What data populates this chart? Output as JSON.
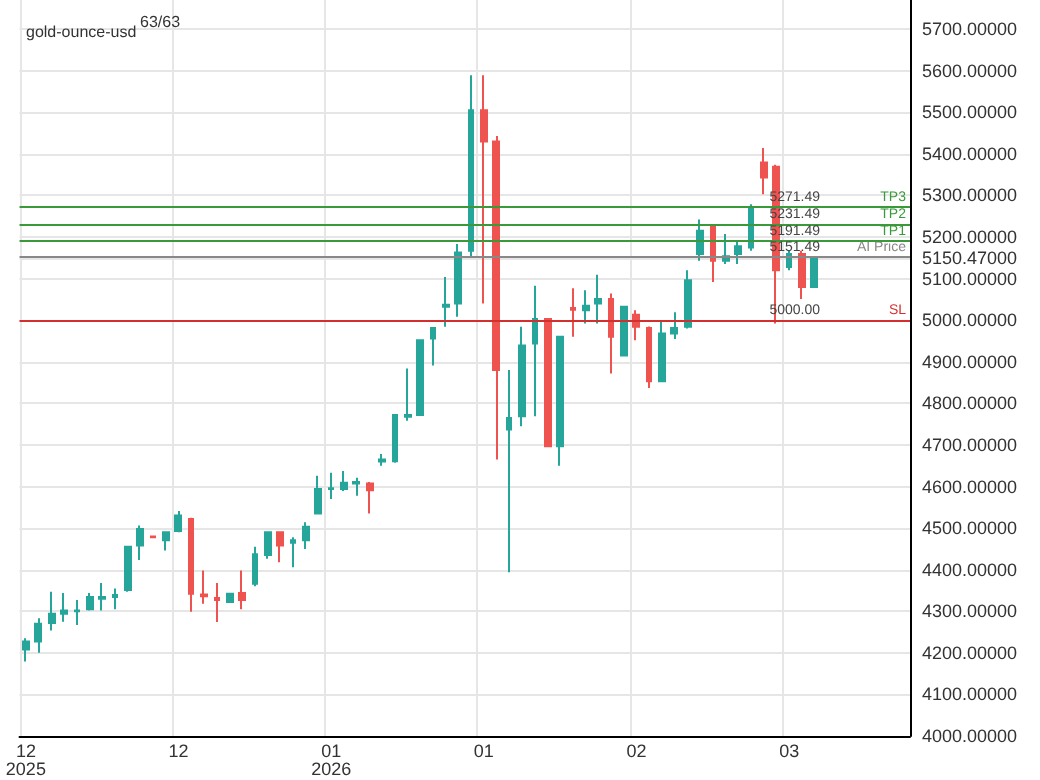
{
  "chart_data": {
    "type": "candlestick",
    "title": "gold-ounce-usd",
    "annotations": [
      "63/63",
      {
        "text": "TP3",
        "y": 5271.49
      },
      {
        "text": "TP2",
        "y": 5231.49
      },
      {
        "text": "TP1",
        "y": 5191.49
      },
      {
        "text": "AI Price",
        "y": 5151.49
      },
      {
        "text": "SL",
        "y": 5000
      }
    ],
    "categories": [
      "12\n2025",
      null,
      null,
      null,
      null,
      null,
      null,
      null,
      null,
      null,
      null,
      null,
      "12",
      null,
      null,
      null,
      null,
      null,
      null,
      null,
      null,
      null,
      null,
      null,
      "01\n2026",
      null,
      null,
      null,
      null,
      null,
      null,
      null,
      null,
      null,
      null,
      null,
      "01",
      null,
      null,
      null,
      null,
      null,
      null,
      null,
      null,
      null,
      null,
      null,
      "02",
      null,
      null,
      null,
      null,
      null,
      null,
      null,
      null,
      null,
      null,
      null,
      "03",
      null,
      null,
      null,
      null,
      null,
      null,
      null,
      null,
      null
    ],
    "ohlc": [
      [
        4208,
        4235,
        4179,
        4227
      ],
      [
        4227,
        4283,
        4200,
        4270
      ],
      [
        4272,
        4347,
        4254,
        4294
      ],
      [
        4294,
        4344,
        4275,
        4302
      ],
      [
        4300,
        4327,
        4267,
        4302
      ],
      [
        4305,
        4344,
        4302,
        4334
      ],
      [
        4330,
        4368,
        4302,
        4334
      ],
      [
        4334,
        4355,
        4305,
        4339
      ],
      [
        4351,
        4455,
        4347,
        4455
      ],
      [
        4458,
        4506,
        4423,
        4498
      ],
      [
        4480,
        4482,
        4476,
        4478
      ],
      [
        4471,
        4492,
        4446,
        4490
      ],
      [
        4493,
        4541,
        4490,
        4530
      ],
      [
        4522,
        4525,
        4299,
        4342
      ],
      [
        4340,
        4398,
        4318,
        4336
      ],
      [
        4332,
        4368,
        4274,
        4327
      ],
      [
        4322,
        4344,
        4320,
        4342
      ],
      [
        4344,
        4398,
        4305,
        4327
      ],
      [
        4366,
        4455,
        4360,
        4437
      ],
      [
        4435,
        4492,
        4426,
        4490
      ],
      [
        4490,
        4492,
        4418,
        4458
      ],
      [
        4465,
        4478,
        4406,
        4471
      ],
      [
        4471,
        4514,
        4450,
        4503
      ],
      [
        4535,
        4626,
        4535,
        4594
      ],
      [
        4594,
        4633,
        4570,
        4596
      ],
      [
        4594,
        4637,
        4589,
        4609
      ],
      [
        4607,
        4621,
        4578,
        4611
      ],
      [
        4607,
        4611,
        4535,
        4591
      ],
      [
        4660,
        4678,
        4650,
        4665
      ],
      [
        4661,
        4772,
        4657,
        4772
      ],
      [
        4768,
        4884,
        4758,
        4772
      ],
      [
        4772,
        4952,
        4770,
        4952
      ],
      [
        4956,
        4981,
        4891,
        4981
      ],
      [
        5032,
        5104,
        4984,
        5037
      ],
      [
        5040,
        5183,
        5008,
        5163
      ],
      [
        5167,
        5589,
        5152,
        5505
      ],
      [
        5505,
        5589,
        5040,
        5430
      ],
      [
        5430,
        5443,
        4665,
        4880
      ],
      [
        4737,
        4880,
        4394,
        4765
      ],
      [
        4769,
        4984,
        4745,
        4939
      ],
      [
        4944,
        5083,
        4769,
        5003
      ],
      [
        5003,
        5005,
        4697,
        4697
      ],
      [
        4697,
        4962,
        4650,
        4960
      ],
      [
        5029,
        5077,
        4960,
        5025
      ],
      [
        5024,
        5072,
        4992,
        5035
      ],
      [
        5040,
        5109,
        4992,
        5051
      ],
      [
        5051,
        5064,
        4872,
        4960
      ],
      [
        4915,
        5035,
        4913,
        5032
      ],
      [
        5013,
        5024,
        4952,
        4984
      ],
      [
        4981,
        4985,
        4837,
        4853
      ],
      [
        4853,
        4997,
        4853,
        4968
      ],
      [
        4968,
        5019,
        4955,
        4981
      ],
      [
        4984,
        5120,
        4980,
        5096
      ],
      [
        5159,
        5242,
        5143,
        5215
      ],
      [
        5226,
        5231,
        5092,
        5143
      ],
      [
        5143,
        5207,
        5135,
        5154
      ],
      [
        5159,
        5191,
        5135,
        5178
      ],
      [
        5175,
        5279,
        5167,
        5271
      ],
      [
        5379,
        5414,
        5303,
        5343
      ],
      [
        5369,
        5374,
        4992,
        5120
      ],
      [
        5128,
        5167,
        5120,
        5159
      ],
      [
        5159,
        5167,
        5051,
        5080
      ],
      [
        5080,
        5152,
        5078,
        5150
      ],
      null,
      null,
      null,
      null,
      null,
      null,
      null
    ],
    "colors": [
      "#26a69a",
      "#26a69a",
      "#26a69a",
      "#26a69a",
      "#26a69a",
      "#26a69a",
      "#26a69a",
      "#26a69a",
      "#26a69a",
      "#26a69a",
      "#ef5350",
      "#26a69a",
      "#26a69a",
      "#ef5350",
      "#ef5350",
      "#ef5350",
      "#26a69a",
      "#ef5350",
      "#26a69a",
      "#26a69a",
      "#ef5350",
      "#26a69a",
      "#26a69a",
      "#26a69a",
      "#26a69a",
      "#26a69a",
      "#26a69a",
      "#ef5350",
      "#26a69a",
      "#26a69a",
      "#26a69a",
      "#26a69a",
      "#26a69a",
      "#26a69a",
      "#26a69a",
      "#26a69a",
      "#ef5350",
      "#ef5350",
      "#26a69a",
      "#26a69a",
      "#26a69a",
      "#ef5350",
      "#26a69a",
      "#ef5350",
      "#26a69a",
      "#26a69a",
      "#ef5350",
      "#26a69a",
      "#ef5350",
      "#ef5350",
      "#26a69a",
      "#26a69a",
      "#26a69a",
      "#26a69a",
      "#ef5350",
      "#26a69a",
      "#26a69a",
      "#26a69a",
      "#ef5350",
      "#ef5350",
      "#26a69a",
      "#ef5350",
      "#26a69a",
      null,
      null,
      null,
      null,
      null,
      null,
      null
    ],
    "ylim": [
      4000,
      5770
    ],
    "yticks": [
      {
        "value": 4000,
        "label": "4000.00000"
      },
      {
        "value": 4100,
        "label": "4100.00000"
      },
      {
        "value": 4200,
        "label": "4200.00000"
      },
      {
        "value": 4300,
        "label": "4300.00000"
      },
      {
        "value": 4400,
        "label": "4400.00000"
      },
      {
        "value": 4500,
        "label": "4500.00000"
      },
      {
        "value": 4600,
        "label": "4600.00000"
      },
      {
        "value": 4700,
        "label": "4700.00000"
      },
      {
        "value": 4800,
        "label": "4800.00000"
      },
      {
        "value": 4900,
        "label": "4900.00000"
      },
      {
        "value": 5000,
        "label": "5000.00000"
      },
      {
        "value": 5100,
        "label": "5100.00000"
      },
      {
        "value": 5150.47,
        "label": "5150.47000"
      },
      {
        "value": 5200,
        "label": "5200.00000"
      },
      {
        "value": 5300,
        "label": "5300.00000"
      },
      {
        "value": 5400,
        "label": "5400.00000"
      },
      {
        "value": 5500,
        "label": "5500.00000"
      },
      {
        "value": 5600,
        "label": "5600.00000"
      },
      {
        "value": 5700,
        "label": "5700.00000"
      }
    ],
    "ref_lines": [
      {
        "axis": "y",
        "value": 5271.49,
        "label": "5271.49",
        "color": "#3a9a3a"
      },
      {
        "axis": "y",
        "value": 5231.49,
        "label": "5231.49",
        "color": "#3a9a3a"
      },
      {
        "axis": "y",
        "value": 5191.49,
        "label": "5191.49",
        "color": "#3a9a3a"
      },
      {
        "axis": "y",
        "value": 5151.49,
        "label": "5151.49",
        "color": "#888888"
      },
      {
        "axis": "y",
        "value": 5000,
        "label": "5000.00",
        "color": "#d32f2f"
      }
    ],
    "grid": true
  }
}
